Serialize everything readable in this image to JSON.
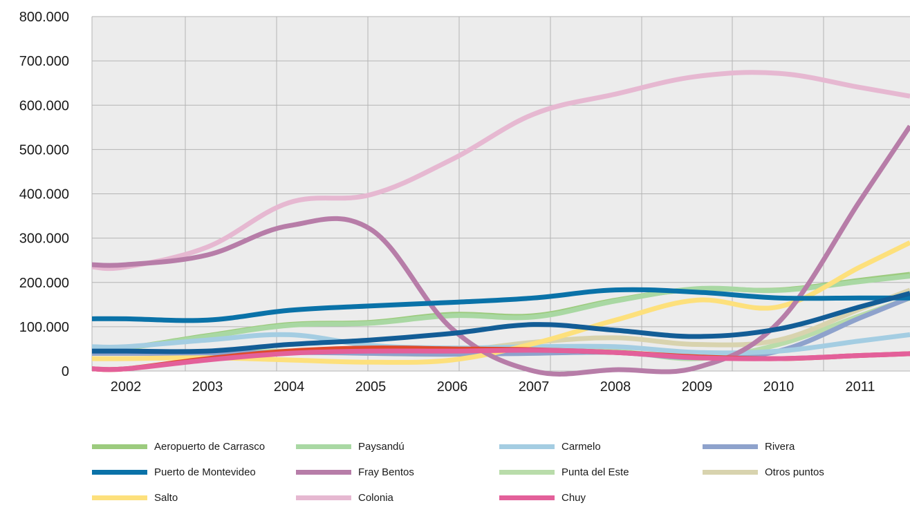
{
  "chart_data": {
    "type": "line",
    "title": "",
    "xlabel": "",
    "ylabel": "",
    "ylim": [
      0,
      800000
    ],
    "y_ticks": [
      "0",
      "100.000",
      "200.000",
      "300.000",
      "400.000",
      "500.000",
      "600.000",
      "700.000",
      "800.000"
    ],
    "categories": [
      "2002",
      "2003",
      "2004",
      "2005",
      "2006",
      "2007",
      "2008",
      "2009",
      "2010",
      "2011"
    ],
    "grid": true,
    "background": "#ececec",
    "legend_position": "bottom",
    "series": [
      {
        "name": "Aeropuerto de Carrasco",
        "color": "#9ccb7e",
        "values": [
          52000,
          80000,
          105000,
          110000,
          128000,
          125000,
          160000,
          185000,
          183000,
          205000
        ]
      },
      {
        "name": "Paysandú",
        "color": "#a9d8a3",
        "values": [
          52000,
          78000,
          103000,
          108000,
          125000,
          122000,
          158000,
          186000,
          182000,
          202000
        ]
      },
      {
        "name": "Carmelo",
        "color": "#a4cde2",
        "values": [
          55000,
          70000,
          82000,
          58000,
          52000,
          55000,
          55000,
          42000,
          45000,
          68000
        ]
      },
      {
        "name": "Rivera",
        "color": "#8ea2cc",
        "values": [
          40000,
          40000,
          42000,
          40000,
          38000,
          40000,
          42000,
          30000,
          45000,
          120000
        ]
      },
      {
        "name": "Puerto de Montevideo",
        "color": "#0a72a8",
        "values": [
          118000,
          115000,
          137000,
          147000,
          155000,
          165000,
          183000,
          178000,
          165000,
          165000
        ]
      },
      {
        "name": "Fray Bentos",
        "color": "#b77da8",
        "values": [
          240000,
          262000,
          328000,
          320000,
          95000,
          0,
          3000,
          8000,
          110000,
          385000
        ]
      },
      {
        "name": "Punta del Este",
        "color": "#b9dcaa",
        "values": [
          40000,
          40000,
          45000,
          40000,
          38000,
          45000,
          45000,
          28000,
          60000,
          125000
        ]
      },
      {
        "name": "Otros puntos",
        "color": "#d8d3ae",
        "values": [
          40000,
          40000,
          42000,
          45000,
          45000,
          65000,
          75000,
          60000,
          70000,
          140000
        ]
      },
      {
        "name": "Salto",
        "color": "#fde07c",
        "values": [
          28000,
          30000,
          25000,
          20000,
          25000,
          62000,
          115000,
          160000,
          145000,
          235000
        ]
      },
      {
        "name": "Colonia",
        "color": "#e6b8d1",
        "values": [
          235000,
          280000,
          380000,
          398000,
          478000,
          580000,
          625000,
          665000,
          672000,
          640000
        ]
      },
      {
        "name": "Chuy",
        "color": "#e3609a",
        "values": [
          5000,
          25000,
          40000,
          45000,
          45000,
          47000,
          42000,
          30000,
          28000,
          35000
        ]
      },
      {
        "name": "",
        "color": "#e04a2a",
        "values": [
          5000,
          28000,
          45000,
          52000,
          50000,
          48000,
          42000,
          32000,
          28000,
          35000
        ]
      },
      {
        "name": "",
        "color": "#135d96",
        "values": [
          45000,
          45000,
          60000,
          70000,
          85000,
          105000,
          92000,
          78000,
          95000,
          145000
        ]
      }
    ]
  }
}
